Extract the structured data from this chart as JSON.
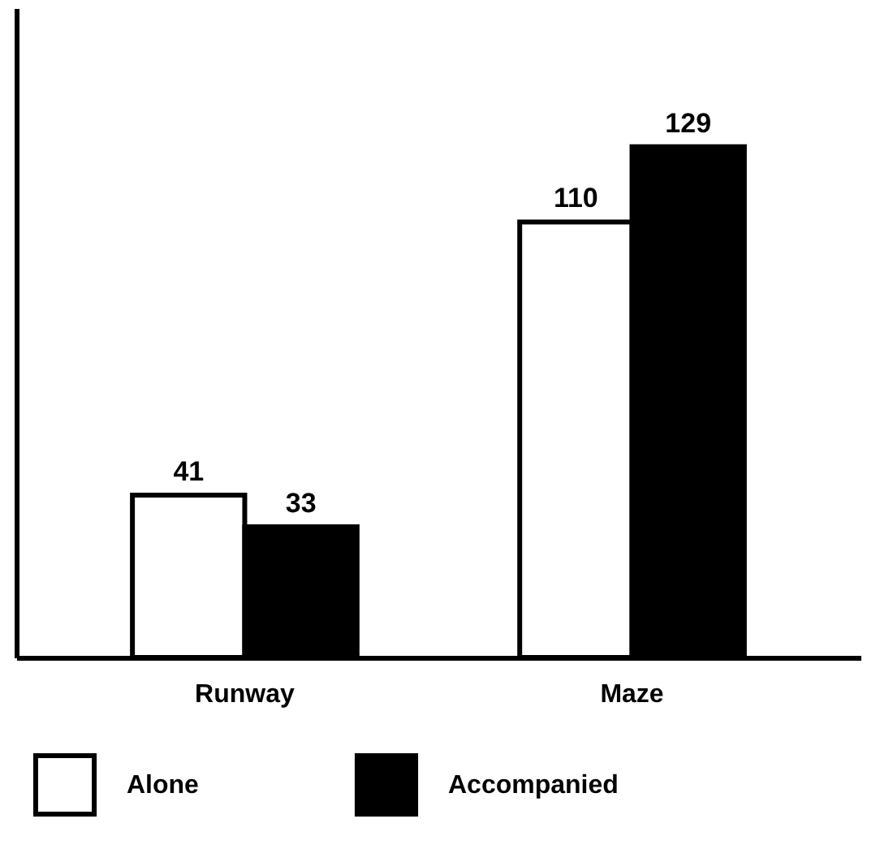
{
  "chart_data": {
    "type": "bar",
    "categories": [
      "Runway",
      "Maze"
    ],
    "series": [
      {
        "name": "Alone",
        "color": "#ffffff",
        "values": [
          41,
          110
        ]
      },
      {
        "name": "Accompanied",
        "color": "#000000",
        "values": [
          33,
          129
        ]
      }
    ],
    "ylim": [
      0,
      164
    ],
    "tick_labels": "x",
    "data_labels": true,
    "legend": "bottom"
  }
}
